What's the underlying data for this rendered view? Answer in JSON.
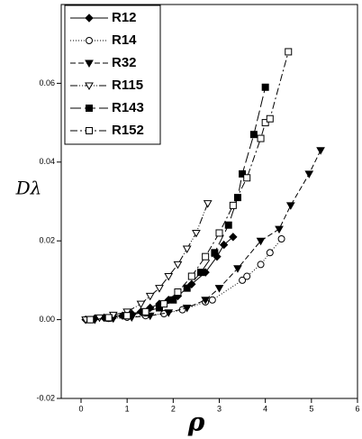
{
  "chart_data": {
    "type": "line",
    "x_label": "ρ",
    "y_label": "Dλ",
    "xlim": [
      -0.43,
      6
    ],
    "ylim": [
      -0.02,
      0.08
    ],
    "xticks": [
      0,
      1,
      2,
      3,
      4,
      5,
      6
    ],
    "yticks": [
      -0.02,
      {
        "value": 0,
        "label": "0.00"
      },
      0.02,
      0.04,
      0.06
    ],
    "series": [
      {
        "name": "R12",
        "color": "#000000",
        "dash": "solid",
        "marker": "diamond",
        "filled": true,
        "x": [
          0.1,
          0.3,
          0.5,
          0.7,
          0.9,
          1.1,
          1.3,
          1.5,
          1.7,
          1.9,
          2.1,
          2.4,
          2.7,
          2.95,
          3.1,
          3.3
        ],
        "values": [
          0,
          0.0003,
          0.0005,
          0.0008,
          0.001,
          0.0015,
          0.002,
          0.003,
          0.004,
          0.005,
          0.006,
          0.009,
          0.012,
          0.016,
          0.019,
          0.021
        ]
      },
      {
        "name": "R14",
        "color": "#000000",
        "dash": "dotted",
        "marker": "circle",
        "filled": false,
        "x": [
          0.2,
          0.6,
          1.0,
          1.4,
          1.8,
          2.2,
          2.7,
          2.85,
          3.5,
          3.6,
          3.9,
          4.1,
          4.35
        ],
        "values": [
          0,
          0.0003,
          0.0006,
          0.001,
          0.0015,
          0.0025,
          0.0045,
          0.005,
          0.01,
          0.011,
          0.014,
          0.017,
          0.0205
        ]
      },
      {
        "name": "R32",
        "color": "#000000",
        "dash": "dashed",
        "marker": "triangle-down",
        "filled": true,
        "x": [
          0.3,
          0.7,
          1.1,
          1.5,
          1.9,
          2.3,
          2.7,
          3.0,
          3.4,
          3.9,
          4.3,
          4.55,
          4.95,
          5.2
        ],
        "values": [
          0,
          0.0003,
          0.0006,
          0.001,
          0.0018,
          0.003,
          0.005,
          0.008,
          0.013,
          0.02,
          0.023,
          0.029,
          0.037,
          0.043
        ]
      },
      {
        "name": "R115",
        "color": "#000000",
        "dash": "dash-dot-dot",
        "marker": "triangle-down",
        "filled": false,
        "x": [
          0.1,
          0.4,
          0.7,
          1.0,
          1.3,
          1.5,
          1.7,
          1.9,
          2.1,
          2.3,
          2.5,
          2.75
        ],
        "values": [
          0,
          0.0005,
          0.0012,
          0.002,
          0.004,
          0.006,
          0.008,
          0.011,
          0.014,
          0.018,
          0.022,
          0.0295
        ]
      },
      {
        "name": "R143",
        "color": "#000000",
        "dash": "long-dash",
        "marker": "square",
        "filled": true,
        "x": [
          0.2,
          0.6,
          1.0,
          1.4,
          1.7,
          2.0,
          2.3,
          2.6,
          2.9,
          3.2,
          3.4,
          3.5,
          3.75,
          4.0
        ],
        "values": [
          0,
          0.0004,
          0.001,
          0.002,
          0.003,
          0.005,
          0.008,
          0.012,
          0.017,
          0.024,
          0.031,
          0.037,
          0.047,
          0.059
        ]
      },
      {
        "name": "R152",
        "color": "#000000",
        "dash": "dash-dot",
        "marker": "square",
        "filled": false,
        "x": [
          0.2,
          0.6,
          1.0,
          1.4,
          1.8,
          2.1,
          2.4,
          2.7,
          3.0,
          3.3,
          3.6,
          3.9,
          4.0,
          4.1,
          4.5
        ],
        "values": [
          0,
          0.0005,
          0.001,
          0.002,
          0.004,
          0.007,
          0.011,
          0.016,
          0.022,
          0.029,
          0.036,
          0.046,
          0.05,
          0.051,
          0.068
        ]
      }
    ]
  }
}
